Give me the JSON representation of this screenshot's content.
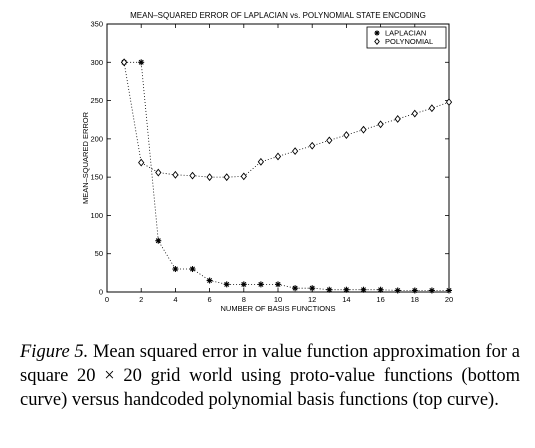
{
  "chart_data": {
    "type": "line",
    "title": "MEAN–SQUARED ERROR OF LAPLACIAN vs. POLYNOMIAL STATE ENCODING",
    "xlabel": "NUMBER OF BASIS FUNCTIONS",
    "ylabel": "MEAN–SQUARED ERROR",
    "xlim": [
      0,
      20
    ],
    "ylim": [
      0,
      350
    ],
    "xticks": [
      0,
      2,
      4,
      6,
      8,
      10,
      12,
      14,
      16,
      18,
      20
    ],
    "yticks": [
      0,
      50,
      100,
      150,
      200,
      250,
      300,
      350
    ],
    "grid": false,
    "legend_position": "top-right",
    "x": [
      1,
      2,
      3,
      4,
      5,
      6,
      7,
      8,
      9,
      10,
      11,
      12,
      13,
      14,
      15,
      16,
      17,
      18,
      19,
      20
    ],
    "series": [
      {
        "name": "LAPLACIAN",
        "marker": "star",
        "line_style": "dotted",
        "values": [
          300,
          300,
          67,
          30,
          30,
          15,
          10,
          10,
          10,
          10,
          5,
          5,
          3,
          3,
          3,
          3,
          2,
          2,
          2,
          2
        ]
      },
      {
        "name": "POLYNOMIAL",
        "marker": "diamond",
        "line_style": "dotted",
        "values": [
          300,
          169,
          156,
          153,
          152,
          150,
          150,
          151,
          170,
          177,
          184,
          191,
          198,
          205,
          212,
          219,
          226,
          233,
          240,
          248
        ]
      }
    ]
  },
  "caption": {
    "label": "Figure 5.",
    "text": " Mean squared error in value function approximation for a square 20 × 20 grid world using proto-value functions (bottom curve) versus handcoded polynomial basis functions (top curve)."
  }
}
